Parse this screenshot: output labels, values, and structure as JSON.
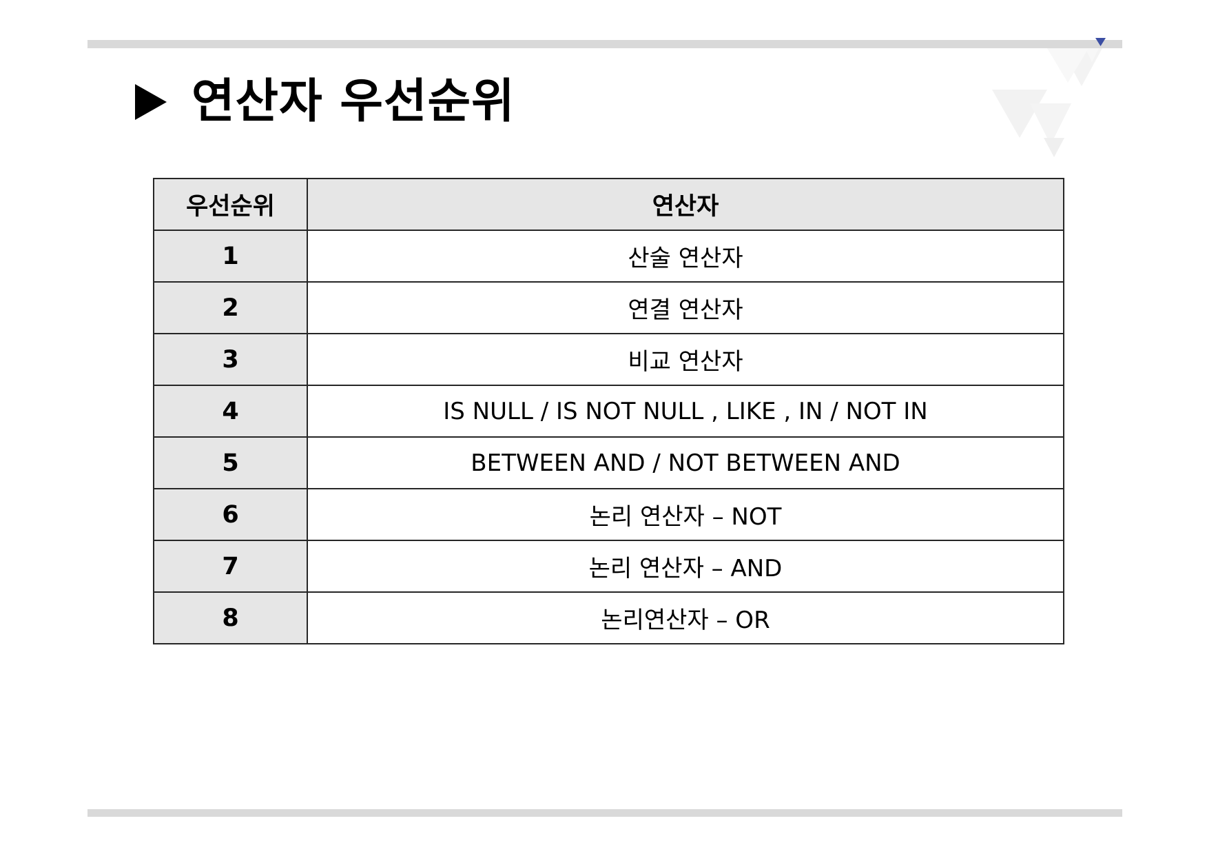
{
  "slide": {
    "title": "연산자 우선순위",
    "title_marker_icon": "triangle-right-icon",
    "accent_color": "#3b4ea3"
  },
  "table": {
    "headers": {
      "rank": "우선순위",
      "operator": "연산자"
    },
    "rows": [
      {
        "rank": "1",
        "operator": "산술 연산자"
      },
      {
        "rank": "2",
        "operator": "연결 연산자"
      },
      {
        "rank": "3",
        "operator": "비교 연산자"
      },
      {
        "rank": "4",
        "operator": "IS NULL / IS NOT NULL , LIKE , IN / NOT IN"
      },
      {
        "rank": "5",
        "operator": "BETWEEN AND / NOT BETWEEN AND"
      },
      {
        "rank": "6",
        "operator": "논리 연산자 – NOT"
      },
      {
        "rank": "7",
        "operator": "논리 연산자 – AND"
      },
      {
        "rank": "8",
        "operator": "논리연산자 – OR"
      }
    ]
  }
}
